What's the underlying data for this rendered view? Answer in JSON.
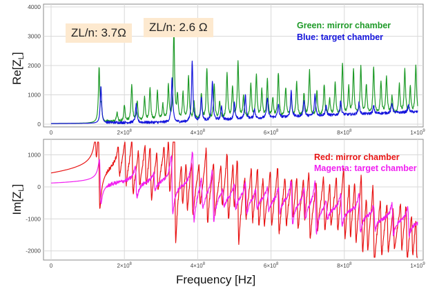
{
  "chart_data": [
    {
      "type": "line",
      "ylabel_main": "Re[Z",
      "ylabel_sub": "L",
      "ylabel_tail": "]",
      "xlim": [
        0,
        1000000000
      ],
      "ylim": [
        0,
        4000
      ],
      "yticks": [
        0,
        1000,
        2000,
        3000,
        4000
      ],
      "ytick_labels": [
        "0",
        "1000",
        "2000",
        "3000",
        "4000"
      ],
      "xticks": [
        0,
        200000000,
        400000000,
        600000000,
        800000000,
        1000000000
      ],
      "xtick_base": [
        "0",
        "2",
        "4",
        "6",
        "8",
        "1"
      ],
      "xtick_exp": [
        "",
        "8",
        "8",
        "8",
        "8",
        "9"
      ],
      "annotations": [
        "ZL/n: 3.7Ω",
        "ZL/n: 2.6 Ω"
      ],
      "legend": [
        "Green: mirror chamber",
        "Blue: target chamber"
      ],
      "colors": {
        "mirror": "#1e9a28",
        "target": "#1414dc"
      },
      "series": [
        {
          "name": "Green: mirror chamber",
          "color": "#1e9a28",
          "baseline": [
            [
              0,
              20
            ],
            [
              100000000,
              30
            ],
            [
              130000000,
              50
            ],
            [
              200000000,
              60
            ],
            [
              300000000,
              80
            ],
            [
              400000000,
              90
            ],
            [
              500000000,
              150
            ],
            [
              600000000,
              180
            ],
            [
              700000000,
              220
            ],
            [
              800000000,
              260
            ],
            [
              900000000,
              300
            ],
            [
              1000000000,
              320
            ]
          ],
          "peaks": [
            [
              131000000,
              1900
            ],
            [
              137000000,
              550
            ],
            [
              180000000,
              350
            ],
            [
              200000000,
              600
            ],
            [
              220000000,
              1300
            ],
            [
              235000000,
              700
            ],
            [
              255000000,
              850
            ],
            [
              270000000,
              1200
            ],
            [
              290000000,
              1100
            ],
            [
              305000000,
              600
            ],
            [
              320000000,
              1250
            ],
            [
              335000000,
              3150
            ],
            [
              345000000,
              900
            ],
            [
              360000000,
              1000
            ],
            [
              375000000,
              1600
            ],
            [
              390000000,
              700
            ],
            [
              410000000,
              1000
            ],
            [
              425000000,
              1850
            ],
            [
              445000000,
              1300
            ],
            [
              460000000,
              700
            ],
            [
              480000000,
              1700
            ],
            [
              495000000,
              1200
            ],
            [
              510000000,
              2100
            ],
            [
              525000000,
              900
            ],
            [
              545000000,
              1300
            ],
            [
              560000000,
              1650
            ],
            [
              575000000,
              1100
            ],
            [
              590000000,
              1450
            ],
            [
              605000000,
              850
            ],
            [
              620000000,
              1700
            ],
            [
              640000000,
              1200
            ],
            [
              655000000,
              900
            ],
            [
              670000000,
              1400
            ],
            [
              690000000,
              1000
            ],
            [
              705000000,
              1800
            ],
            [
              725000000,
              1100
            ],
            [
              745000000,
              1300
            ],
            [
              760000000,
              800
            ],
            [
              775000000,
              1400
            ],
            [
              795000000,
              2000
            ],
            [
              812000000,
              1200
            ],
            [
              825000000,
              1800
            ],
            [
              845000000,
              1900
            ],
            [
              860000000,
              1300
            ],
            [
              880000000,
              1900
            ],
            [
              900000000,
              1400
            ],
            [
              915000000,
              1600
            ],
            [
              930000000,
              900
            ],
            [
              950000000,
              1300
            ],
            [
              965000000,
              1800
            ],
            [
              980000000,
              1200
            ],
            [
              995000000,
              2000
            ]
          ]
        },
        {
          "name": "Blue: target chamber",
          "color": "#1414dc",
          "baseline": [
            [
              0,
              20
            ],
            [
              130000000,
              30
            ],
            [
              300000000,
              40
            ],
            [
              370000000,
              50
            ],
            [
              400000000,
              80
            ],
            [
              600000000,
              200
            ],
            [
              700000000,
              250
            ],
            [
              800000000,
              300
            ],
            [
              900000000,
              350
            ],
            [
              1000000000,
              400
            ]
          ],
          "peaks": [
            [
              136000000,
              1300
            ],
            [
              232000000,
              650
            ],
            [
              330000000,
              1600
            ],
            [
              385000000,
              2150
            ],
            [
              410000000,
              900
            ],
            [
              440000000,
              1450
            ],
            [
              465000000,
              600
            ],
            [
              500000000,
              700
            ],
            [
              530000000,
              1000
            ],
            [
              555000000,
              500
            ],
            [
              590000000,
              900
            ],
            [
              620000000,
              650
            ],
            [
              655000000,
              1100
            ],
            [
              690000000,
              800
            ],
            [
              720000000,
              1000
            ],
            [
              750000000,
              600
            ],
            [
              790000000,
              800
            ],
            [
              840000000,
              700
            ],
            [
              880000000,
              600
            ],
            [
              930000000,
              700
            ],
            [
              975000000,
              650
            ]
          ]
        }
      ]
    },
    {
      "type": "line",
      "ylabel_main": "Im[Z",
      "ylabel_sub": "L",
      "ylabel_tail": "]",
      "xlabel": "Frequency [Hz]",
      "xlim": [
        0,
        1000000000
      ],
      "ylim": [
        -2200,
        1400
      ],
      "yticks": [
        -2000,
        -1000,
        0,
        1000
      ],
      "ytick_labels": [
        "-2000",
        "-1000",
        "0",
        "1000"
      ],
      "xticks": [
        0,
        200000000,
        400000000,
        600000000,
        800000000,
        1000000000
      ],
      "xtick_base": [
        "0",
        "2",
        "4",
        "6",
        "8",
        "1"
      ],
      "xtick_exp": [
        "",
        "8",
        "8",
        "8",
        "8",
        "9"
      ],
      "legend": [
        "Red: mirror chamber",
        "Magenta: target chamber"
      ],
      "colors": {
        "mirror": "#e81414",
        "target": "#f01ef0"
      },
      "series": [
        {
          "name": "Red: mirror chamber",
          "color": "#e81414",
          "baseline": [
            [
              0,
              0
            ],
            [
              120000000,
              80
            ],
            [
              130000000,
              50
            ],
            [
              200000000,
              0
            ],
            [
              300000000,
              -40
            ],
            [
              400000000,
              -150
            ],
            [
              500000000,
              -300
            ],
            [
              600000000,
              -350
            ],
            [
              700000000,
              -400
            ],
            [
              800000000,
              -500
            ],
            [
              900000000,
              -700
            ],
            [
              1000000000,
              -800
            ]
          ],
          "dispersive": [
            [
              122000000,
              400
            ],
            [
              131000000,
              1200
            ],
            [
              185000000,
              450
            ],
            [
              203000000,
              700
            ],
            [
              222000000,
              900
            ],
            [
              240000000,
              600
            ],
            [
              258000000,
              700
            ],
            [
              272000000,
              900
            ],
            [
              290000000,
              650
            ],
            [
              310000000,
              600
            ],
            [
              322000000,
              900
            ],
            [
              338000000,
              2000
            ],
            [
              357000000,
              700
            ],
            [
              370000000,
              800
            ],
            [
              385000000,
              900
            ],
            [
              405000000,
              700
            ],
            [
              425000000,
              1200
            ],
            [
              445000000,
              900
            ],
            [
              465000000,
              700
            ],
            [
              482000000,
              1100
            ],
            [
              498000000,
              800
            ],
            [
              510000000,
              1400
            ],
            [
              530000000,
              700
            ],
            [
              548000000,
              900
            ],
            [
              565000000,
              1000
            ],
            [
              580000000,
              800
            ],
            [
              600000000,
              900
            ],
            [
              620000000,
              1100
            ],
            [
              640000000,
              800
            ],
            [
              658000000,
              700
            ],
            [
              672000000,
              900
            ],
            [
              690000000,
              700
            ],
            [
              705000000,
              1100
            ],
            [
              725000000,
              800
            ],
            [
              745000000,
              900
            ],
            [
              762000000,
              700
            ],
            [
              780000000,
              900
            ],
            [
              800000000,
              1200
            ],
            [
              815000000,
              900
            ],
            [
              830000000,
              1000
            ],
            [
              848000000,
              1300
            ],
            [
              862000000,
              900
            ],
            [
              880000000,
              1300
            ],
            [
              900000000,
              900
            ],
            [
              918000000,
              800
            ],
            [
              935000000,
              700
            ],
            [
              955000000,
              800
            ],
            [
              970000000,
              900
            ],
            [
              985000000,
              700
            ],
            [
              997000000,
              900
            ]
          ]
        },
        {
          "name": "Magenta: target chamber",
          "color": "#f01ef0",
          "baseline": [
            [
              0,
              0
            ],
            [
              130000000,
              20
            ],
            [
              300000000,
              -20
            ],
            [
              400000000,
              -200
            ],
            [
              500000000,
              -300
            ],
            [
              600000000,
              -400
            ],
            [
              700000000,
              -500
            ],
            [
              800000000,
              -600
            ],
            [
              900000000,
              -850
            ],
            [
              1000000000,
              -900
            ]
          ],
          "dispersive": [
            [
              134000000,
              700
            ],
            [
              232000000,
              500
            ],
            [
              282000000,
              300
            ],
            [
              330000000,
              900
            ],
            [
              388000000,
              1100
            ],
            [
              412000000,
              500
            ],
            [
              442000000,
              800
            ],
            [
              470000000,
              300
            ],
            [
              502000000,
              400
            ],
            [
              532000000,
              500
            ],
            [
              560000000,
              300
            ],
            [
              592000000,
              400
            ],
            [
              622000000,
              400
            ],
            [
              657000000,
              700
            ],
            [
              692000000,
              500
            ],
            [
              722000000,
              800
            ],
            [
              752000000,
              300
            ],
            [
              792000000,
              500
            ],
            [
              842000000,
              600
            ],
            [
              882000000,
              400
            ],
            [
              932000000,
              500
            ],
            [
              975000000,
              450
            ]
          ]
        }
      ]
    }
  ]
}
